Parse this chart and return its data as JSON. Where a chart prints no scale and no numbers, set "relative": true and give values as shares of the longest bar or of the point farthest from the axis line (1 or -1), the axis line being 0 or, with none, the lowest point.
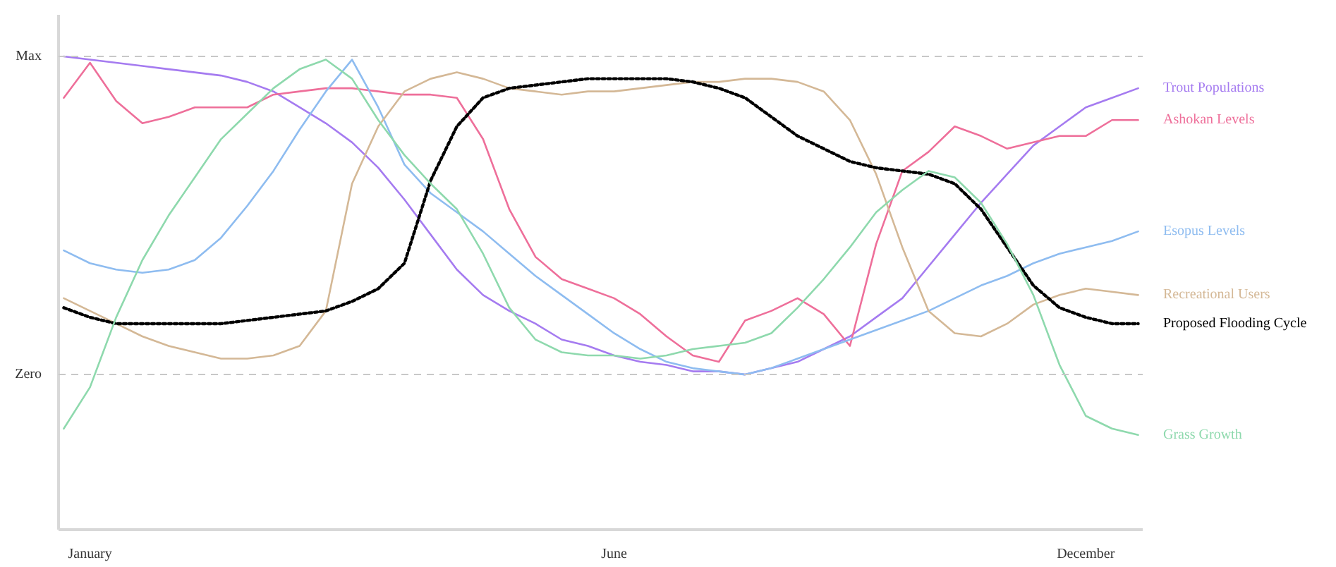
{
  "chart_data": {
    "type": "line",
    "categories": [
      null,
      "January",
      null,
      null,
      null,
      null,
      null,
      null,
      null,
      null,
      null,
      null,
      null,
      null,
      null,
      null,
      null,
      null,
      null,
      null,
      null,
      "June",
      null,
      null,
      null,
      null,
      null,
      null,
      null,
      null,
      null,
      null,
      null,
      null,
      null,
      null,
      null,
      null,
      null,
      "December",
      null,
      null
    ],
    "relative": true,
    "ref_lines": [
      {
        "axis": "y",
        "value": 1,
        "label": "Max",
        "line_style": "dashed",
        "color": "#c8c8c8"
      },
      {
        "axis": "y",
        "value": 0,
        "label": "Zero",
        "line_style": "dashed",
        "color": "#c8c8c8"
      }
    ],
    "series": [
      {
        "name": "Trout Populations",
        "color": "#a57bf0",
        "values": [
          1.0,
          0.99,
          0.98,
          0.97,
          0.96,
          0.95,
          0.94,
          0.92,
          0.89,
          0.84,
          0.79,
          0.73,
          0.65,
          0.55,
          0.44,
          0.33,
          0.25,
          0.2,
          0.16,
          0.11,
          0.09,
          0.06,
          0.04,
          0.03,
          0.01,
          0.01,
          0.0,
          0.02,
          0.04,
          0.08,
          0.12,
          0.18,
          0.24,
          0.34,
          0.44,
          0.54,
          0.63,
          0.72,
          0.78,
          0.84,
          0.87,
          0.9
        ]
      },
      {
        "name": "Ashokan Levels",
        "color": "#ee6f9a",
        "values": [
          0.87,
          0.98,
          0.86,
          0.79,
          0.81,
          0.84,
          0.84,
          0.84,
          0.88,
          0.89,
          0.9,
          0.9,
          0.89,
          0.88,
          0.88,
          0.87,
          0.74,
          0.52,
          0.37,
          0.3,
          0.27,
          0.24,
          0.19,
          0.12,
          0.06,
          0.04,
          0.17,
          0.2,
          0.24,
          0.19,
          0.09,
          0.41,
          0.64,
          0.7,
          0.78,
          0.75,
          0.71,
          0.73,
          0.75,
          0.75,
          0.8,
          0.8
        ]
      },
      {
        "name": "Esopus Levels",
        "color": "#8ebcf0",
        "values": [
          0.39,
          0.35,
          0.33,
          0.32,
          0.33,
          0.36,
          0.43,
          0.53,
          0.64,
          0.77,
          0.89,
          0.99,
          0.84,
          0.66,
          0.57,
          0.51,
          0.45,
          0.38,
          0.31,
          0.25,
          0.19,
          0.13,
          0.08,
          0.04,
          0.02,
          0.01,
          0.0,
          0.02,
          0.05,
          0.08,
          0.11,
          0.14,
          0.17,
          0.2,
          0.24,
          0.28,
          0.31,
          0.35,
          0.38,
          0.4,
          0.42,
          0.45
        ]
      },
      {
        "name": "Recreational Users",
        "color": "#d4b896",
        "values": [
          0.24,
          0.2,
          0.16,
          0.12,
          0.09,
          0.07,
          0.05,
          0.05,
          0.06,
          0.09,
          0.2,
          0.6,
          0.78,
          0.89,
          0.93,
          0.95,
          0.93,
          0.9,
          0.89,
          0.88,
          0.89,
          0.89,
          0.9,
          0.91,
          0.92,
          0.92,
          0.93,
          0.93,
          0.92,
          0.89,
          0.8,
          0.63,
          0.4,
          0.2,
          0.13,
          0.12,
          0.16,
          0.22,
          0.25,
          0.27,
          0.26,
          0.25
        ]
      },
      {
        "name": "Proposed Flooding Cycle",
        "color": "#000000",
        "line_style": "dotted",
        "values": [
          0.21,
          0.18,
          0.16,
          0.16,
          0.16,
          0.16,
          0.16,
          0.17,
          0.18,
          0.19,
          0.2,
          0.23,
          0.27,
          0.35,
          0.61,
          0.78,
          0.87,
          0.9,
          0.91,
          0.92,
          0.93,
          0.93,
          0.93,
          0.93,
          0.92,
          0.9,
          0.87,
          0.81,
          0.75,
          0.71,
          0.67,
          0.65,
          0.64,
          0.63,
          0.6,
          0.52,
          0.4,
          0.28,
          0.21,
          0.18,
          0.16,
          0.16
        ]
      },
      {
        "name": "Grass Growth",
        "color": "#8ed9ad",
        "values": [
          -0.17,
          -0.04,
          0.18,
          0.36,
          0.5,
          0.62,
          0.74,
          0.82,
          0.9,
          0.96,
          0.99,
          0.93,
          0.8,
          0.69,
          0.6,
          0.52,
          0.38,
          0.21,
          0.11,
          0.07,
          0.06,
          0.06,
          0.05,
          0.06,
          0.08,
          0.09,
          0.1,
          0.13,
          0.21,
          0.3,
          0.4,
          0.51,
          0.58,
          0.64,
          0.62,
          0.54,
          0.41,
          0.25,
          0.03,
          -0.13,
          -0.17,
          -0.19
        ]
      }
    ]
  }
}
